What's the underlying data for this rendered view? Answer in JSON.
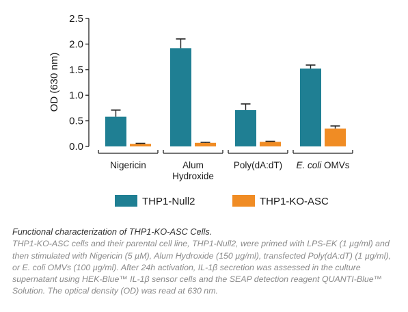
{
  "chart_data": {
    "type": "bar",
    "ylabel": "OD (630 nm)",
    "ylim": [
      0,
      2.5
    ],
    "yticks": [
      "0.0",
      "0.5",
      "1.0",
      "1.5",
      "2.0",
      "2.5"
    ],
    "categories": [
      [
        "Nigericin"
      ],
      [
        "Alum",
        "Hydroxide"
      ],
      [
        "Poly(dA:dT)"
      ],
      [
        "E. coli OMVs"
      ]
    ],
    "series": [
      {
        "name": "THP1-Null2",
        "color": "#1f7f93",
        "values": [
          0.58,
          1.92,
          0.71,
          1.52
        ],
        "errors": [
          0.13,
          0.18,
          0.12,
          0.07
        ]
      },
      {
        "name": "THP1-KO-ASC",
        "color": "#f08c24",
        "values": [
          0.05,
          0.07,
          0.09,
          0.35
        ],
        "errors": [
          0.01,
          0.01,
          0.01,
          0.05
        ]
      }
    ],
    "legend_position": "bottom"
  },
  "caption": {
    "title": "Functional characterization of THP1-KO-ASC Cells.",
    "body": "THP1-KO-ASC cells  and their parental cell line, THP1-Null2, were primed with LPS-EK (1 µg/ml) and then stimulated with Nigericin (5 µM), Alum Hydroxide (150 µg/ml), transfected Poly(dA:dT) (1 µg/ml), or E. coli OMVs (100 µg/ml). After 24h activation, IL-1β secretion was assessed in the culture supernatant using HEK-Blue™ IL-1β sensor cells and the SEAP detection reagent QUANTI-Blue™ Solution. The optical density (OD) was read at 630 nm."
  }
}
